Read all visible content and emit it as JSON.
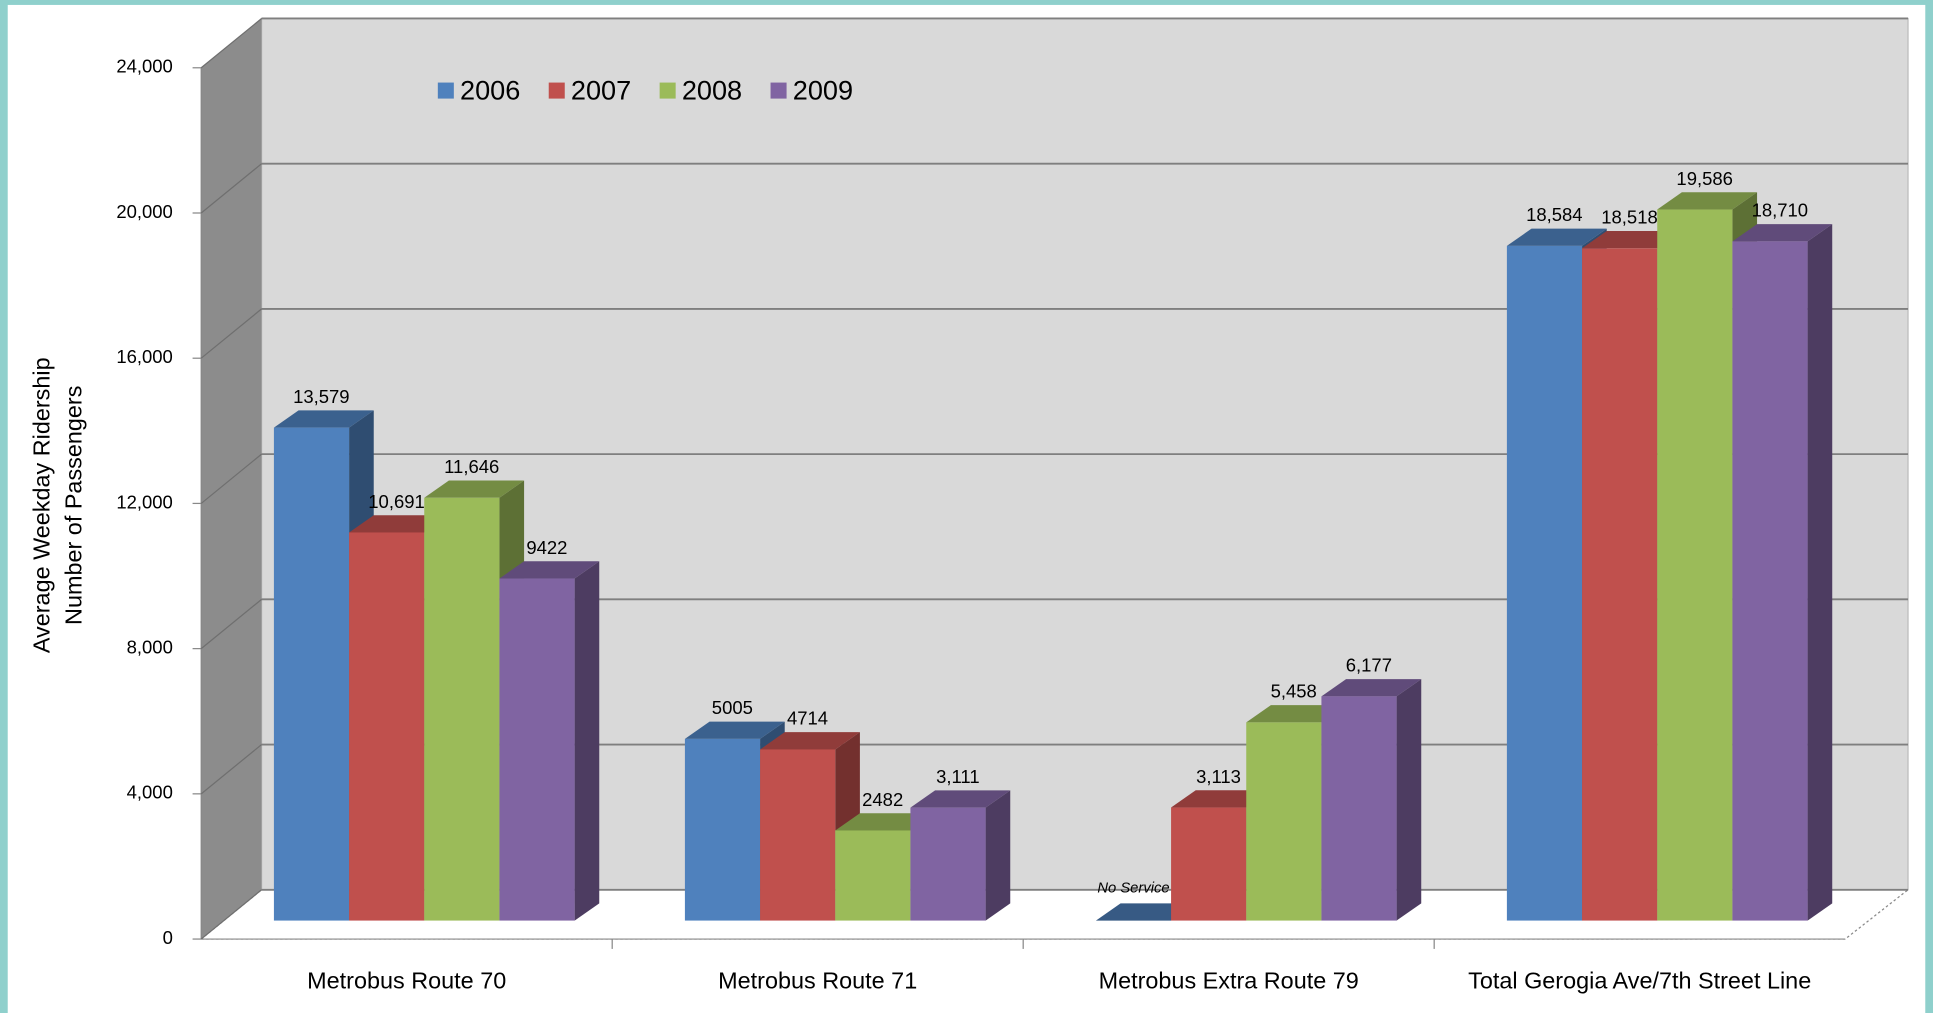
{
  "chart_data": {
    "type": "bar3d",
    "ylabel": [
      "Average Weekday Ridership",
      "Number of Passengers"
    ],
    "categories": [
      "Metrobus Route 70",
      "Metrobus Route 71",
      "Metrobus Extra Route 79",
      "Total Gerogia Ave/7th Street Line"
    ],
    "series": [
      {
        "name": "2006",
        "color": "#4f81bd",
        "values": [
          13579,
          5005,
          null,
          18584
        ],
        "value_labels": [
          "13,579",
          "5005",
          "No Service",
          "18,584"
        ]
      },
      {
        "name": "2007",
        "color": "#c0504d",
        "values": [
          10691,
          4714,
          3113,
          18518
        ],
        "value_labels": [
          "10,691",
          "4714",
          "3,113",
          "18,518"
        ]
      },
      {
        "name": "2008",
        "color": "#9bbb59",
        "values": [
          11646,
          2482,
          5458,
          19586
        ],
        "value_labels": [
          "11,646",
          "2482",
          "5,458",
          "19,586"
        ]
      },
      {
        "name": "2009",
        "color": "#8064a2",
        "values": [
          9422,
          3111,
          6177,
          18710
        ],
        "value_labels": [
          "9422",
          "3,111",
          "6,177",
          "18,710"
        ]
      }
    ],
    "ylim": [
      0,
      24000
    ],
    "yticks": [
      0,
      {
        "value": 4000,
        "label": "4,000"
      },
      {
        "value": 8000,
        "label": "8,000"
      },
      {
        "value": 12000,
        "label": "12,000"
      },
      {
        "value": 16000,
        "label": "16,000"
      },
      {
        "value": 20000,
        "label": "20,000"
      },
      {
        "value": 24000,
        "label": "24,000"
      }
    ],
    "grid": true,
    "legend": "top-left"
  }
}
